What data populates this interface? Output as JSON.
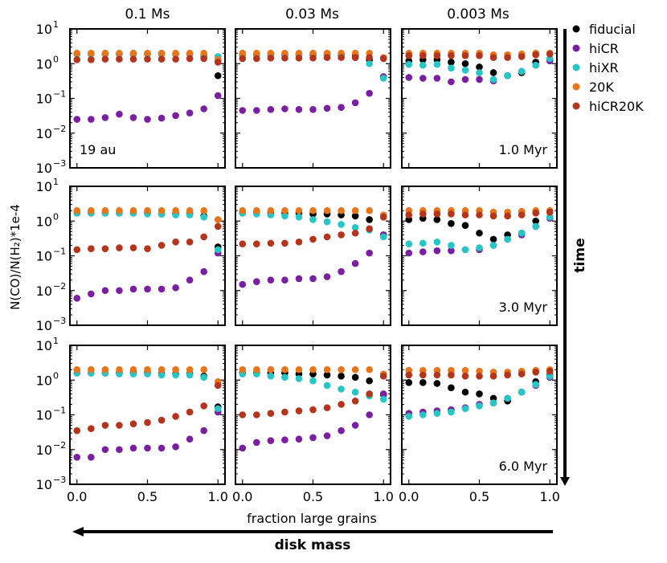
{
  "chart_data": {
    "type": "scatter",
    "grid_rows": 3,
    "grid_cols": 3,
    "yscale": "log",
    "ylim": [
      0.001,
      10
    ],
    "xlim": [
      -0.05,
      1.05
    ],
    "x": [
      0.0,
      0.1,
      0.2,
      0.3,
      0.4,
      0.5,
      0.6,
      0.7,
      0.8,
      0.9,
      1.0
    ],
    "x_ticks": [
      0.0,
      0.5,
      1.0
    ],
    "x_tick_labels": [
      "0.0",
      "0.5",
      "1.0"
    ],
    "y_ticks": [
      0.001,
      0.01,
      0.1,
      1,
      10
    ],
    "y_tick_bases": [
      "10",
      "10",
      "10",
      "10",
      "10"
    ],
    "y_tick_exps": [
      "−3",
      "−2",
      "−1",
      "0",
      "1"
    ],
    "column_titles": [
      "0.1 Ms",
      "0.03 Ms",
      "0.003 Ms"
    ],
    "ylabel": "N(CO)/N(H₂)*1e-4",
    "xlabel": "fraction large grains",
    "arrow_right_label": "time",
    "arrow_bottom_label": "disk mass",
    "legend_position": "right",
    "series_info": [
      {
        "name": "fiducial",
        "color": "#000000"
      },
      {
        "name": "hiCR",
        "color": "#7b1fa2"
      },
      {
        "name": "hiXR",
        "color": "#26c6c6"
      },
      {
        "name": "20K",
        "color": "#e8751a"
      },
      {
        "name": "hiCR20K",
        "color": "#b5341c"
      }
    ],
    "panels": [
      {
        "row": 0,
        "col": 0,
        "annotation": "19 au",
        "annotation_pos": "bottom-left",
        "series": [
          {
            "name": "fiducial",
            "values": [
              1.9,
              1.9,
              1.9,
              1.9,
              1.9,
              1.9,
              1.9,
              1.9,
              1.9,
              1.7,
              0.45
            ]
          },
          {
            "name": "hiCR",
            "values": [
              0.025,
              0.025,
              0.028,
              0.035,
              0.028,
              0.025,
              0.027,
              0.032,
              0.038,
              0.05,
              0.12
            ]
          },
          {
            "name": "hiXR",
            "values": [
              1.9,
              1.9,
              1.9,
              1.9,
              1.9,
              1.9,
              1.9,
              1.9,
              1.9,
              1.8,
              1.6
            ]
          },
          {
            "name": "20K",
            "values": [
              2.0,
              2.0,
              2.0,
              2.0,
              2.0,
              2.0,
              2.0,
              2.0,
              2.0,
              2.0,
              1.3
            ]
          },
          {
            "name": "hiCR20K",
            "values": [
              1.3,
              1.3,
              1.35,
              1.35,
              1.35,
              1.35,
              1.35,
              1.35,
              1.4,
              1.4,
              1.1
            ]
          }
        ]
      },
      {
        "row": 0,
        "col": 1,
        "annotation": "",
        "annotation_pos": "bottom-right",
        "series": [
          {
            "name": "fiducial",
            "values": [
              1.8,
              1.8,
              1.8,
              1.8,
              1.8,
              1.8,
              1.8,
              1.8,
              1.7,
              1.3,
              0.42
            ]
          },
          {
            "name": "hiCR",
            "values": [
              0.045,
              0.045,
              0.048,
              0.05,
              0.048,
              0.048,
              0.052,
              0.055,
              0.075,
              0.14,
              0.42
            ]
          },
          {
            "name": "hiXR",
            "values": [
              1.8,
              1.8,
              1.8,
              1.8,
              1.8,
              1.7,
              1.7,
              1.7,
              1.5,
              1.0,
              0.38
            ]
          },
          {
            "name": "20K",
            "values": [
              2.0,
              2.0,
              2.0,
              2.0,
              2.0,
              2.0,
              2.0,
              2.0,
              2.0,
              2.0,
              1.5
            ]
          },
          {
            "name": "hiCR20K",
            "values": [
              1.4,
              1.4,
              1.45,
              1.45,
              1.45,
              1.45,
              1.5,
              1.5,
              1.5,
              1.5,
              1.4
            ]
          }
        ]
      },
      {
        "row": 0,
        "col": 2,
        "annotation": "1.0 Myr",
        "annotation_pos": "bottom-right",
        "series": [
          {
            "name": "fiducial",
            "values": [
              1.2,
              1.3,
              1.3,
              1.1,
              1.0,
              0.8,
              0.55,
              0.45,
              0.55,
              1.1,
              1.3
            ]
          },
          {
            "name": "hiCR",
            "values": [
              0.4,
              0.38,
              0.38,
              0.3,
              0.35,
              0.35,
              0.32,
              0.45,
              0.6,
              0.9,
              1.2
            ]
          },
          {
            "name": "hiXR",
            "values": [
              0.95,
              0.9,
              0.95,
              0.75,
              0.65,
              0.55,
              0.35,
              0.45,
              0.6,
              0.9,
              1.4
            ]
          },
          {
            "name": "20K",
            "values": [
              2.0,
              2.0,
              2.0,
              2.0,
              2.0,
              2.0,
              1.8,
              1.8,
              1.9,
              2.0,
              2.0
            ]
          },
          {
            "name": "hiCR20K",
            "values": [
              1.7,
              1.7,
              1.7,
              1.7,
              1.7,
              1.7,
              1.5,
              1.5,
              1.6,
              1.8,
              1.9
            ]
          }
        ]
      },
      {
        "row": 1,
        "col": 0,
        "annotation": "",
        "annotation_pos": "bottom-left",
        "series": [
          {
            "name": "fiducial",
            "values": [
              1.7,
              1.7,
              1.7,
              1.7,
              1.7,
              1.7,
              1.6,
              1.6,
              1.6,
              1.4,
              0.18
            ]
          },
          {
            "name": "hiCR",
            "values": [
              0.006,
              0.008,
              0.01,
              0.01,
              0.011,
              0.011,
              0.011,
              0.012,
              0.02,
              0.035,
              0.12
            ]
          },
          {
            "name": "hiXR",
            "values": [
              1.7,
              1.7,
              1.7,
              1.7,
              1.7,
              1.6,
              1.6,
              1.5,
              1.5,
              1.3,
              0.15
            ]
          },
          {
            "name": "20K",
            "values": [
              2.0,
              2.0,
              2.0,
              2.0,
              2.0,
              2.0,
              2.0,
              2.0,
              2.0,
              2.0,
              1.1
            ]
          },
          {
            "name": "hiCR20K",
            "values": [
              0.15,
              0.16,
              0.16,
              0.17,
              0.17,
              0.16,
              0.2,
              0.25,
              0.25,
              0.35,
              0.7
            ]
          }
        ]
      },
      {
        "row": 1,
        "col": 1,
        "annotation": "",
        "annotation_pos": "bottom-right",
        "series": [
          {
            "name": "fiducial",
            "values": [
              1.7,
              1.7,
              1.7,
              1.7,
              1.7,
              1.6,
              1.6,
              1.5,
              1.4,
              1.1,
              0.4
            ]
          },
          {
            "name": "hiCR",
            "values": [
              0.015,
              0.018,
              0.02,
              0.02,
              0.022,
              0.022,
              0.025,
              0.035,
              0.06,
              0.12,
              0.4
            ]
          },
          {
            "name": "hiXR",
            "values": [
              1.7,
              1.6,
              1.5,
              1.4,
              1.3,
              1.1,
              0.95,
              0.8,
              0.65,
              0.55,
              0.35
            ]
          },
          {
            "name": "20K",
            "values": [
              2.0,
              2.0,
              2.0,
              2.0,
              2.0,
              2.0,
              2.0,
              2.0,
              2.0,
              2.0,
              1.5
            ]
          },
          {
            "name": "hiCR20K",
            "values": [
              0.22,
              0.22,
              0.23,
              0.23,
              0.25,
              0.3,
              0.35,
              0.4,
              0.45,
              0.6,
              1.3
            ]
          }
        ]
      },
      {
        "row": 1,
        "col": 2,
        "annotation": "3.0 Myr",
        "annotation_pos": "bottom-right",
        "series": [
          {
            "name": "fiducial",
            "values": [
              1.1,
              1.2,
              1.1,
              0.85,
              0.75,
              0.45,
              0.3,
              0.4,
              0.45,
              1.0,
              1.3
            ]
          },
          {
            "name": "hiCR",
            "values": [
              0.12,
              0.13,
              0.14,
              0.14,
              0.15,
              0.15,
              0.2,
              0.3,
              0.4,
              0.7,
              1.2
            ]
          },
          {
            "name": "hiXR",
            "values": [
              0.22,
              0.23,
              0.25,
              0.2,
              0.15,
              0.17,
              0.2,
              0.3,
              0.45,
              0.7,
              1.3
            ]
          },
          {
            "name": "20K",
            "values": [
              2.0,
              2.0,
              2.0,
              2.0,
              2.0,
              2.0,
              1.8,
              1.8,
              1.9,
              2.0,
              2.0
            ]
          },
          {
            "name": "hiCR20K",
            "values": [
              1.5,
              1.6,
              1.6,
              1.6,
              1.5,
              1.5,
              1.4,
              1.4,
              1.5,
              1.7,
              1.8
            ]
          }
        ]
      },
      {
        "row": 2,
        "col": 0,
        "annotation": "",
        "annotation_pos": "bottom-left",
        "series": [
          {
            "name": "fiducial",
            "values": [
              1.6,
              1.6,
              1.6,
              1.6,
              1.6,
              1.6,
              1.5,
              1.5,
              1.5,
              1.3,
              0.17
            ]
          },
          {
            "name": "hiCR",
            "values": [
              0.006,
              0.006,
              0.01,
              0.01,
              0.011,
              0.011,
              0.011,
              0.012,
              0.02,
              0.035,
              0.12
            ]
          },
          {
            "name": "hiXR",
            "values": [
              1.6,
              1.6,
              1.6,
              1.5,
              1.5,
              1.5,
              1.4,
              1.4,
              1.4,
              1.2,
              0.15
            ]
          },
          {
            "name": "20K",
            "values": [
              2.0,
              2.0,
              2.0,
              2.0,
              2.0,
              2.0,
              2.0,
              2.0,
              2.0,
              2.0,
              0.9
            ]
          },
          {
            "name": "hiCR20K",
            "values": [
              0.035,
              0.04,
              0.05,
              0.05,
              0.055,
              0.06,
              0.07,
              0.09,
              0.12,
              0.18,
              0.7
            ]
          }
        ]
      },
      {
        "row": 2,
        "col": 1,
        "annotation": "",
        "annotation_pos": "bottom-right",
        "series": [
          {
            "name": "fiducial",
            "values": [
              1.6,
              1.6,
              1.6,
              1.6,
              1.5,
              1.5,
              1.4,
              1.3,
              1.2,
              0.95,
              0.38
            ]
          },
          {
            "name": "hiCR",
            "values": [
              0.011,
              0.016,
              0.018,
              0.019,
              0.02,
              0.022,
              0.025,
              0.035,
              0.05,
              0.1,
              0.4
            ]
          },
          {
            "name": "hiXR",
            "values": [
              1.5,
              1.5,
              1.3,
              1.2,
              1.1,
              0.95,
              0.7,
              0.55,
              0.45,
              0.35,
              0.28
            ]
          },
          {
            "name": "20K",
            "values": [
              2.0,
              2.0,
              2.0,
              2.0,
              2.0,
              2.0,
              2.0,
              2.0,
              2.0,
              2.0,
              1.5
            ]
          },
          {
            "name": "hiCR20K",
            "values": [
              0.1,
              0.1,
              0.11,
              0.12,
              0.13,
              0.14,
              0.16,
              0.2,
              0.25,
              0.4,
              1.3
            ]
          }
        ]
      },
      {
        "row": 2,
        "col": 2,
        "annotation": "6.0 Myr",
        "annotation_pos": "bottom-right",
        "series": [
          {
            "name": "fiducial",
            "values": [
              0.85,
              0.85,
              0.8,
              0.6,
              0.45,
              0.4,
              0.3,
              0.25,
              0.45,
              0.9,
              1.4
            ]
          },
          {
            "name": "hiCR",
            "values": [
              0.11,
              0.12,
              0.13,
              0.14,
              0.16,
              0.2,
              0.22,
              0.3,
              0.45,
              0.7,
              1.2
            ]
          },
          {
            "name": "hiXR",
            "values": [
              0.09,
              0.1,
              0.11,
              0.12,
              0.15,
              0.18,
              0.22,
              0.3,
              0.45,
              0.75,
              1.3
            ]
          },
          {
            "name": "20K",
            "values": [
              1.9,
              1.9,
              1.9,
              1.9,
              1.9,
              1.8,
              1.7,
              1.7,
              1.8,
              1.9,
              2.0
            ]
          },
          {
            "name": "hiCR20K",
            "values": [
              1.4,
              1.4,
              1.4,
              1.4,
              1.3,
              1.3,
              1.3,
              1.4,
              1.5,
              1.7,
              1.8
            ]
          }
        ]
      }
    ]
  }
}
